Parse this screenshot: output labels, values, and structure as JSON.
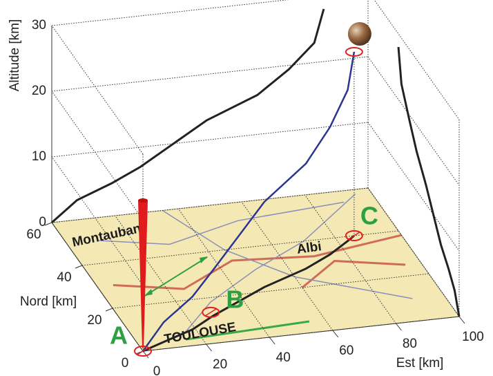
{
  "chart_data": {
    "type": "line3d",
    "xlabel": "Est [km]",
    "ylabel": "Nord [km]",
    "zlabel": "Altitude [km]",
    "xlim": [
      0,
      100
    ],
    "ylim": [
      0,
      60
    ],
    "zlim": [
      0,
      30
    ],
    "xticks": [
      0,
      20,
      40,
      60,
      80,
      100
    ],
    "yticks": [
      0,
      20,
      40,
      60
    ],
    "zticks": [
      0,
      10,
      20,
      30
    ],
    "series": [
      {
        "x": [
          0,
          8,
          19,
          28,
          49,
          65,
          75,
          83,
          86
        ],
        "y": [
          0,
          3,
          7,
          12,
          22,
          28,
          33,
          38,
          40
        ],
        "z": [
          0,
          3,
          5,
          7,
          13,
          16,
          19.4,
          23,
          28
        ],
        "color": "#2b3590",
        "projection_color": "#222222"
      }
    ],
    "points": [
      {
        "label": "A",
        "x": 0,
        "y": 0
      },
      {
        "label": "B",
        "x": 28,
        "y": 13.6
      },
      {
        "label": "C",
        "x": 86,
        "y": 40
      }
    ],
    "map_labels": [
      "Montauban",
      "TOULOUSE",
      "Albi"
    ]
  }
}
